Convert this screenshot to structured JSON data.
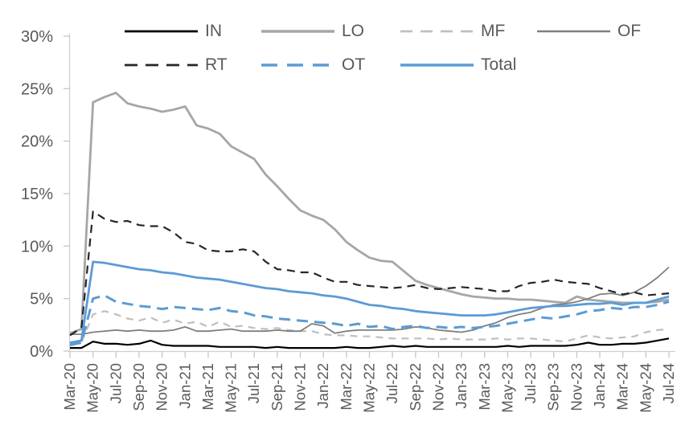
{
  "chart_data": {
    "type": "line",
    "title": "",
    "xlabel": "",
    "ylabel": "",
    "ylim": [
      0,
      30
    ],
    "grid": false,
    "legend_position": "top",
    "y_tick_labels": [
      "0%",
      "5%",
      "10%",
      "15%",
      "20%",
      "25%",
      "30%"
    ],
    "x_tick_labels": [
      "Mar-20",
      "May-20",
      "Jul-20",
      "Sep-20",
      "Nov-20",
      "Jan-21",
      "Mar-21",
      "May-21",
      "Jul-21",
      "Sep-21",
      "Nov-21",
      "Jan-22",
      "Mar-22",
      "May-22",
      "Jul-22",
      "Sep-22",
      "Nov-22",
      "Jan-23",
      "Mar-23",
      "May-23",
      "Jul-23",
      "Sep-23",
      "Nov-23",
      "Jan-24",
      "Mar-24",
      "May-24",
      "Jul-24"
    ],
    "x": [
      "Mar-20",
      "Apr-20",
      "May-20",
      "Jun-20",
      "Jul-20",
      "Aug-20",
      "Sep-20",
      "Oct-20",
      "Nov-20",
      "Dec-20",
      "Jan-21",
      "Feb-21",
      "Mar-21",
      "Apr-21",
      "May-21",
      "Jun-21",
      "Jul-21",
      "Aug-21",
      "Sep-21",
      "Oct-21",
      "Nov-21",
      "Dec-21",
      "Jan-22",
      "Feb-22",
      "Mar-22",
      "Apr-22",
      "May-22",
      "Jun-22",
      "Jul-22",
      "Aug-22",
      "Sep-22",
      "Oct-22",
      "Nov-22",
      "Dec-22",
      "Jan-23",
      "Feb-23",
      "Mar-23",
      "Apr-23",
      "May-23",
      "Jun-23",
      "Jul-23",
      "Aug-23",
      "Sep-23",
      "Oct-23",
      "Nov-23",
      "Dec-23",
      "Jan-24",
      "Feb-24",
      "Mar-24",
      "Apr-24",
      "May-24",
      "Jun-24",
      "Jul-24"
    ],
    "series": [
      {
        "name": "IN",
        "color": "#000000",
        "style": "solid",
        "width": 2.2,
        "values": [
          0.3,
          0.3,
          0.9,
          0.7,
          0.7,
          0.6,
          0.7,
          1.0,
          0.6,
          0.5,
          0.5,
          0.5,
          0.5,
          0.4,
          0.4,
          0.4,
          0.4,
          0.3,
          0.4,
          0.3,
          0.3,
          0.3,
          0.3,
          0.3,
          0.4,
          0.3,
          0.3,
          0.4,
          0.5,
          0.4,
          0.5,
          0.4,
          0.4,
          0.4,
          0.4,
          0.4,
          0.4,
          0.4,
          0.5,
          0.4,
          0.5,
          0.5,
          0.5,
          0.5,
          0.6,
          0.8,
          0.6,
          0.6,
          0.7,
          0.7,
          0.8,
          1.0,
          1.2
        ]
      },
      {
        "name": "LO",
        "color": "#A6A6A6",
        "style": "solid",
        "width": 2.8,
        "values": [
          1.7,
          2.1,
          23.7,
          24.2,
          24.6,
          23.6,
          23.3,
          23.1,
          22.8,
          23.0,
          23.3,
          21.5,
          21.2,
          20.7,
          19.5,
          18.9,
          18.3,
          16.8,
          15.7,
          14.5,
          13.4,
          12.9,
          12.5,
          11.6,
          10.4,
          9.6,
          8.9,
          8.6,
          8.5,
          7.6,
          6.7,
          6.3,
          6.0,
          5.7,
          5.4,
          5.2,
          5.1,
          5.0,
          5.0,
          4.9,
          4.9,
          4.8,
          4.7,
          4.6,
          5.2,
          4.9,
          4.8,
          4.7,
          4.6,
          4.6,
          4.6,
          4.7,
          4.9
        ]
      },
      {
        "name": "MF",
        "color": "#BFBFBF",
        "style": "dashed",
        "width": 2.2,
        "values": [
          0.5,
          0.8,
          3.5,
          3.8,
          3.5,
          3.1,
          2.9,
          3.2,
          2.7,
          3.0,
          2.6,
          2.8,
          2.3,
          2.8,
          2.3,
          2.4,
          2.2,
          2.1,
          2.2,
          2.0,
          1.9,
          1.9,
          1.6,
          1.5,
          1.5,
          1.4,
          1.4,
          1.3,
          1.2,
          1.2,
          1.2,
          1.2,
          1.1,
          1.2,
          1.1,
          1.1,
          1.1,
          1.2,
          1.1,
          1.2,
          1.2,
          1.1,
          1.0,
          0.9,
          1.2,
          1.5,
          1.3,
          1.2,
          1.3,
          1.4,
          1.8,
          2.0,
          2.1
        ]
      },
      {
        "name": "OF",
        "color": "#7F7F7F",
        "style": "solid",
        "width": 1.8,
        "values": [
          1.6,
          1.6,
          1.8,
          1.9,
          2.0,
          1.9,
          2.0,
          1.9,
          1.9,
          2.0,
          2.3,
          1.9,
          1.9,
          2.0,
          2.1,
          1.9,
          1.9,
          1.9,
          2.0,
          1.9,
          1.9,
          2.6,
          2.4,
          1.7,
          1.9,
          2.0,
          2.0,
          2.0,
          2.0,
          2.1,
          2.3,
          2.2,
          2.0,
          1.9,
          1.8,
          2.0,
          2.4,
          2.7,
          3.2,
          3.5,
          3.7,
          4.1,
          4.4,
          4.5,
          4.7,
          5.0,
          5.4,
          5.5,
          5.3,
          5.6,
          6.2,
          7.0,
          8.0
        ]
      },
      {
        "name": "RT",
        "color": "#262626",
        "style": "dashed",
        "width": 2.2,
        "values": [
          1.5,
          2.2,
          13.3,
          12.6,
          12.3,
          12.4,
          12.0,
          11.9,
          11.9,
          11.3,
          10.4,
          10.2,
          9.6,
          9.5,
          9.5,
          9.7,
          9.5,
          8.5,
          7.8,
          7.7,
          7.5,
          7.5,
          7.0,
          6.6,
          6.6,
          6.3,
          6.2,
          6.1,
          6.0,
          6.1,
          6.3,
          6.0,
          5.9,
          6.0,
          6.1,
          6.0,
          5.9,
          5.7,
          5.7,
          6.2,
          6.5,
          6.6,
          6.8,
          6.6,
          6.5,
          6.4,
          6.0,
          5.7,
          5.4,
          5.6,
          5.3,
          5.4,
          5.5
        ]
      },
      {
        "name": "OT",
        "color": "#5B9BD5",
        "style": "dashed",
        "width": 3.0,
        "values": [
          0.6,
          0.8,
          5.0,
          5.3,
          4.7,
          4.5,
          4.3,
          4.2,
          4.0,
          4.2,
          4.1,
          4.0,
          3.9,
          4.1,
          3.8,
          3.7,
          3.4,
          3.3,
          3.1,
          3.0,
          2.9,
          2.8,
          2.7,
          2.6,
          2.4,
          2.6,
          2.3,
          2.4,
          2.1,
          2.3,
          2.4,
          2.2,
          2.3,
          2.2,
          2.3,
          2.2,
          2.3,
          2.4,
          2.6,
          2.8,
          3.0,
          3.2,
          3.1,
          3.3,
          3.5,
          3.8,
          3.9,
          4.1,
          4.0,
          4.2,
          4.2,
          4.4,
          4.7
        ]
      },
      {
        "name": "Total",
        "color": "#5B9BD5",
        "style": "solid",
        "width": 2.8,
        "values": [
          0.8,
          1.0,
          8.5,
          8.4,
          8.2,
          8.0,
          7.8,
          7.7,
          7.5,
          7.4,
          7.2,
          7.0,
          6.9,
          6.8,
          6.6,
          6.4,
          6.2,
          6.0,
          5.9,
          5.7,
          5.6,
          5.5,
          5.3,
          5.2,
          5.0,
          4.7,
          4.4,
          4.3,
          4.1,
          4.0,
          3.8,
          3.7,
          3.6,
          3.5,
          3.4,
          3.4,
          3.4,
          3.5,
          3.7,
          3.9,
          4.1,
          4.2,
          4.3,
          4.3,
          4.4,
          4.5,
          4.5,
          4.6,
          4.4,
          4.6,
          4.6,
          4.9,
          5.2
        ]
      }
    ]
  },
  "legend": {
    "rows": [
      [
        "IN",
        "LO",
        "MF",
        "OF"
      ],
      [
        "RT",
        "OT",
        "Total"
      ]
    ]
  },
  "colors": {
    "axis_text": "#595959",
    "axis_line": "#D0D0D0",
    "tick_line": "#C6C6C6",
    "accent_blue": "#5B9BD5"
  }
}
